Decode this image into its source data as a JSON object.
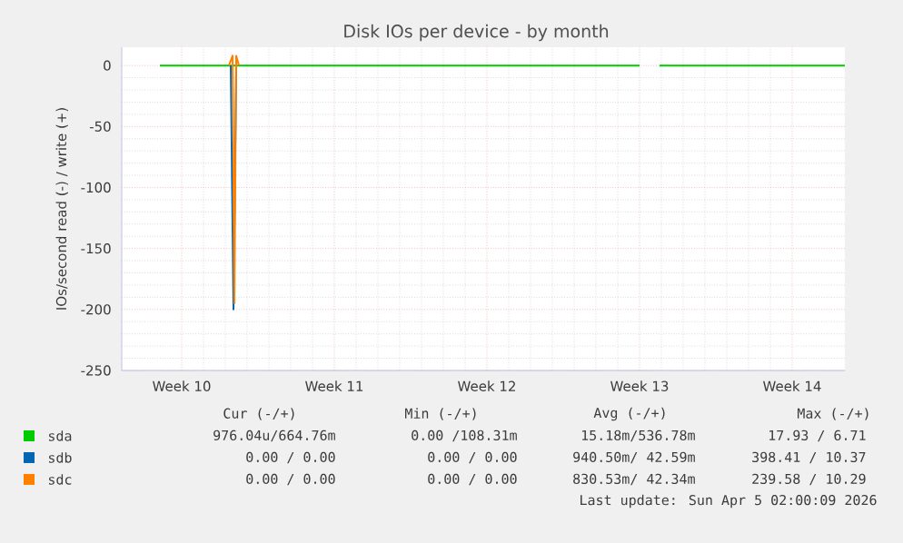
{
  "chart_data": {
    "type": "line",
    "title": "Disk IOs per device - by month",
    "ylabel": "IOs/second read (-) / write (+)",
    "xlim": [
      "2026-03-02T18:00",
      "2026-04-04T22:00"
    ],
    "xticks": [
      {
        "value": "2026-03-05T12:00",
        "label": "Week 10"
      },
      {
        "value": "2026-03-12T12:00",
        "label": "Week 11"
      },
      {
        "value": "2026-03-19T12:00",
        "label": "Week 12"
      },
      {
        "value": "2026-03-26T12:00",
        "label": "Week 13"
      },
      {
        "value": "2026-04-02T12:00",
        "label": "Week 14"
      }
    ],
    "ylim": [
      -250,
      15
    ],
    "yticks": [
      0,
      -50,
      -100,
      -150,
      -200,
      -250
    ],
    "grid": true,
    "legend": "bottom left",
    "series": [
      {
        "name": "sda",
        "color": "#00cc00",
        "x": [
          "2026-03-04T12:00",
          "2026-03-09T00:00",
          "2026-03-26T12:00",
          "2026-03-26T14:00",
          "2026-03-27T10:00",
          "2026-04-04T22:00"
        ],
        "values": [
          0,
          0,
          0,
          null,
          0,
          0
        ]
      },
      {
        "name": "sdb",
        "color": "#0066b3",
        "x": [
          "2026-03-07T18:00",
          "2026-03-07T21:00",
          "2026-03-08T00:00"
        ],
        "values": [
          0,
          -200,
          0
        ]
      },
      {
        "name": "sdc",
        "color": "#ff8000",
        "x": [
          "2026-03-07T16:00",
          "2026-03-07T20:00",
          "2026-03-07T22:00",
          "2026-03-08T00:00",
          "2026-03-08T03:00"
        ],
        "values": [
          0,
          8,
          -195,
          8,
          0
        ]
      }
    ],
    "annotations": [
      "Cur (-/+)",
      "Min (-/+)",
      "Avg (-/+)",
      "Max (-/+)",
      "976.04u/664.76m",
      "0.00 /108.31m",
      "15.18m/536.78m",
      "17.93 /  6.71",
      "0.00 /  0.00",
      "0.00 /  0.00",
      "940.50m/ 42.59m",
      "398.41 / 10.37",
      "0.00 /  0.00",
      "0.00 /  0.00",
      "830.53m/ 42.34m",
      "239.58 / 10.29",
      "Last update: Sun Apr  5 02:00:09 2026"
    ]
  }
}
